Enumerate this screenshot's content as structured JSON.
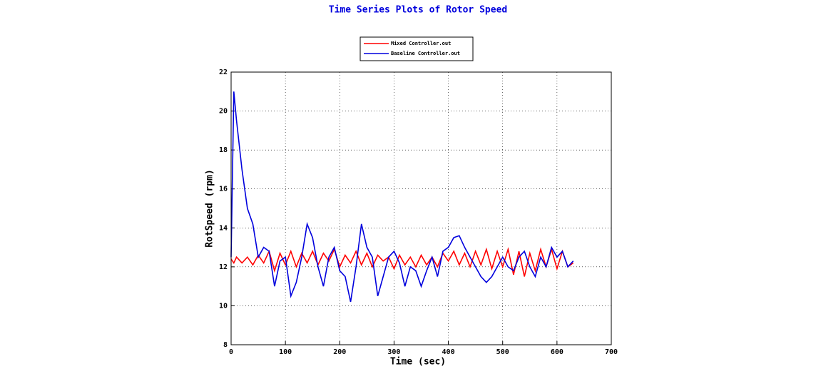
{
  "chart_data": {
    "type": "line",
    "title": "Time Series Plots of Rotor Speed",
    "x_label": "Time (sec)",
    "y_label": "RotSpeed (rpm)",
    "x": [
      0,
      5,
      10,
      20,
      30,
      40,
      50,
      60,
      70,
      80,
      90,
      100,
      110,
      120,
      130,
      140,
      150,
      160,
      170,
      180,
      190,
      200,
      210,
      220,
      230,
      240,
      250,
      260,
      270,
      280,
      290,
      300,
      310,
      320,
      330,
      340,
      350,
      360,
      370,
      380,
      390,
      400,
      410,
      420,
      430,
      440,
      450,
      460,
      470,
      480,
      490,
      500,
      510,
      520,
      530,
      540,
      550,
      560,
      570,
      580,
      590,
      600,
      610,
      620,
      630
    ],
    "series": [
      {
        "name": "Mixed Controller.out",
        "color": "#ff0000",
        "values": [
          12.4,
          12.2,
          12.5,
          12.2,
          12.5,
          12.1,
          12.6,
          12.2,
          12.8,
          11.8,
          12.7,
          12.1,
          12.8,
          12.0,
          12.7,
          12.2,
          12.8,
          12.1,
          12.7,
          12.3,
          12.9,
          12.0,
          12.6,
          12.2,
          12.8,
          12.1,
          12.7,
          12.0,
          12.6,
          12.3,
          12.5,
          11.9,
          12.6,
          12.1,
          12.5,
          12.0,
          12.6,
          12.1,
          12.5,
          12.0,
          12.7,
          12.3,
          12.8,
          12.1,
          12.7,
          12.0,
          12.8,
          12.1,
          12.9,
          11.9,
          12.8,
          12.0,
          12.9,
          11.6,
          12.8,
          11.5,
          12.7,
          11.8,
          12.9,
          12.0,
          12.9,
          11.9,
          12.8,
          12.0,
          12.2
        ]
      },
      {
        "name": "Baseline Controller.out",
        "color": "#0000dd",
        "values": [
          12.5,
          21,
          19.5,
          17,
          15,
          14.2,
          12.5,
          13,
          12.8,
          11,
          12.3,
          12.5,
          10.5,
          11.2,
          12.5,
          14.2,
          13.5,
          12,
          11,
          12.5,
          13,
          11.8,
          11.5,
          10.2,
          12,
          14.2,
          13,
          12.5,
          10.5,
          11.5,
          12.5,
          12.8,
          12.2,
          11,
          12,
          11.8,
          11,
          11.8,
          12.5,
          11.5,
          12.8,
          13,
          13.5,
          13.6,
          13,
          12.5,
          12,
          11.5,
          11.2,
          11.5,
          12,
          12.5,
          12,
          11.8,
          12.5,
          12.8,
          12,
          11.5,
          12.5,
          12,
          13,
          12.5,
          12.8,
          12,
          12.3
        ]
      }
    ],
    "xlim": [
      0,
      700
    ],
    "xticks": [
      0,
      100,
      200,
      300,
      400,
      500,
      600,
      700
    ],
    "ylim": [
      8,
      22
    ],
    "yticks": [
      8,
      10,
      12,
      14,
      16,
      18,
      20,
      22
    ],
    "grid": true,
    "legend": "top"
  }
}
